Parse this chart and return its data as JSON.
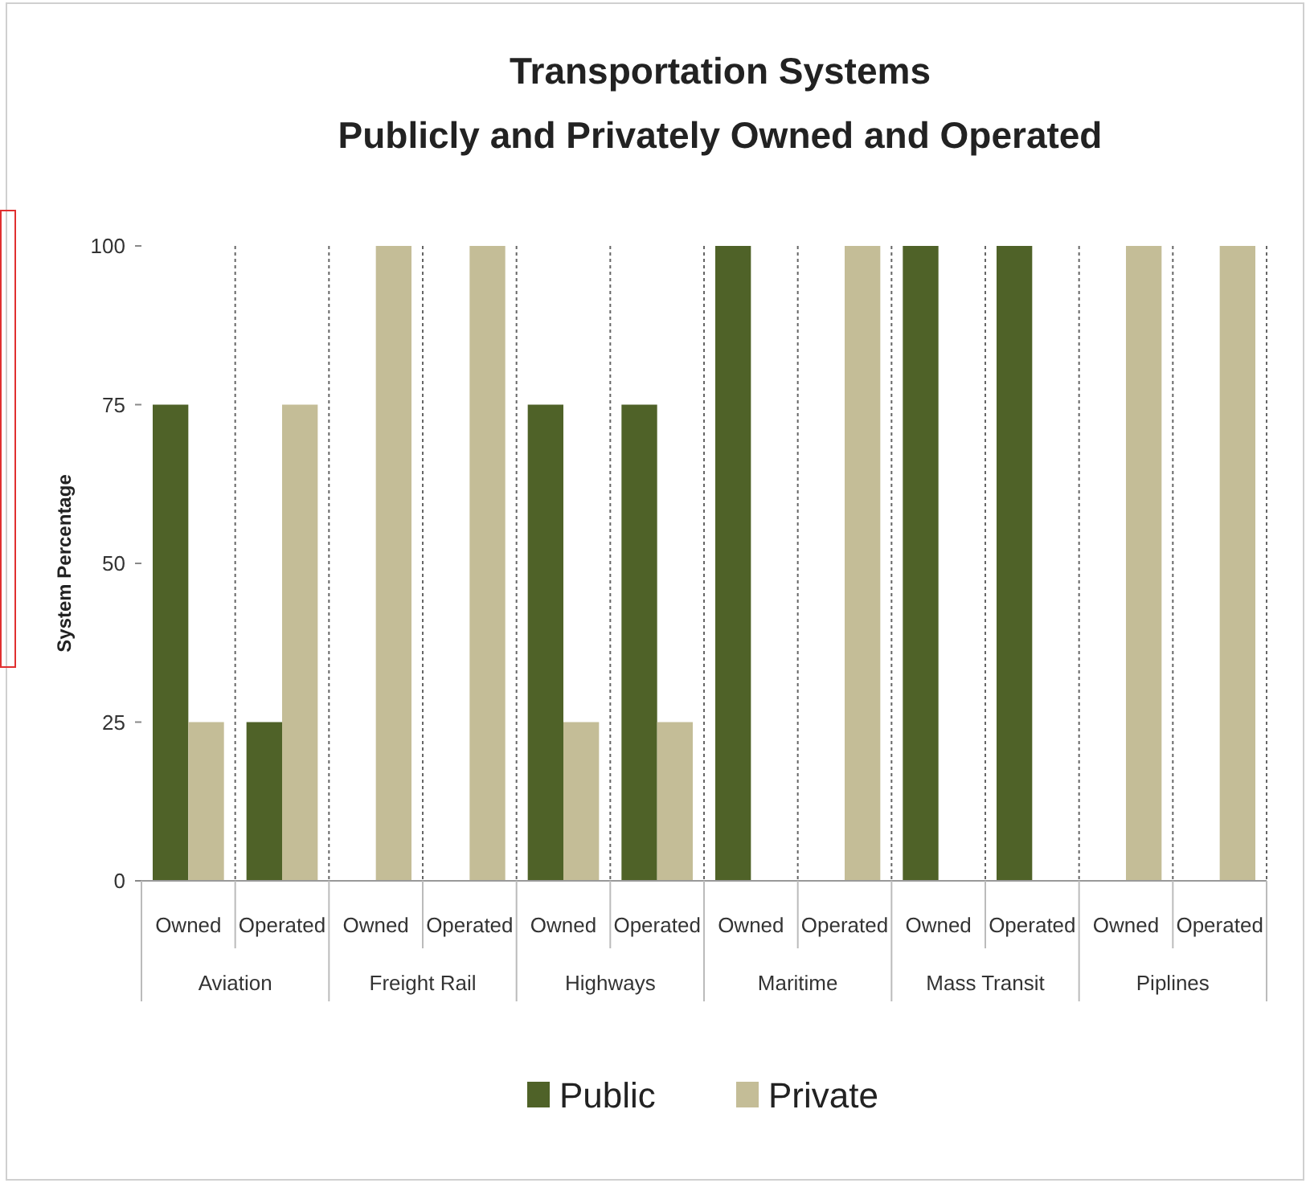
{
  "chart_data": {
    "type": "bar",
    "title": "Transportation Systems\nPublicly and Privately Owned and Operated",
    "ylabel": "System Percentage",
    "categories": [
      "Owned",
      "Operated",
      "Owned",
      "Operated",
      "Owned",
      "Operated",
      "Owned",
      "Operated",
      "Owned",
      "Operated",
      "Owned",
      "Operated"
    ],
    "annotations": [
      "Aviation",
      "Freight Rail",
      "Highways",
      "Maritime",
      "Mass Transit",
      "Piplines"
    ],
    "series": [
      {
        "name": "Public",
        "color": "#4f6228",
        "values": [
          75,
          25,
          0,
          0,
          75,
          75,
          100,
          0,
          100,
          100,
          0,
          0
        ]
      },
      {
        "name": "Private",
        "color": "#c4bd97",
        "values": [
          25,
          75,
          100,
          100,
          25,
          25,
          0,
          100,
          0,
          0,
          100,
          100
        ]
      }
    ],
    "ylim": [
      0,
      100
    ],
    "yticks": [
      0,
      25,
      50,
      75,
      100
    ],
    "grid": "x",
    "legend": "bottom"
  }
}
